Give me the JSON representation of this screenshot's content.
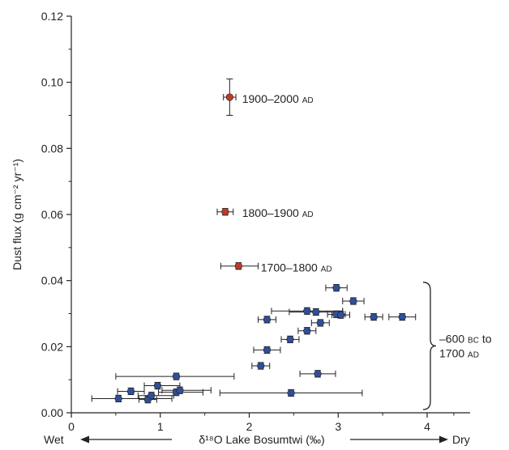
{
  "chart_data": {
    "type": "scatter",
    "xlim": [
      0,
      4.4
    ],
    "ylim": [
      0,
      0.12
    ],
    "x_ticks": [
      "0",
      "1",
      "2",
      "3",
      "4"
    ],
    "y_ticks": [
      "0.00",
      "0.02",
      "0.04",
      "0.06",
      "0.08",
      "0.10",
      "0.12"
    ],
    "x_tick_values": [
      0,
      1,
      2,
      3,
      4
    ],
    "y_tick_values": [
      0,
      0.02,
      0.04,
      0.06,
      0.08,
      0.1,
      0.12
    ],
    "ylabel": "Dust flux (g cm⁻² yr⁻¹)",
    "xlabel": {
      "left": "Wet",
      "center": "δ¹⁸O Lake Bosumtwi (‰)",
      "right": "Dry"
    },
    "colors": {
      "recent": "#c0392b",
      "older": "#2f4f9a",
      "errorbar": "#222222"
    },
    "series": [
      {
        "key": "recent",
        "points": [
          {
            "x": 1.78,
            "y": 0.0955,
            "xerr": [
              0.07,
              0.07
            ],
            "yerr": [
              0.0055,
              0.0055
            ]
          },
          {
            "x": 1.73,
            "y": 0.0608,
            "xerr": [
              0.09,
              0.09
            ],
            "yerr": [
              0.001,
              0.001
            ]
          },
          {
            "x": 1.88,
            "y": 0.0444,
            "xerr": [
              0.2,
              0.22
            ],
            "yerr": [
              0.001,
              0.001
            ]
          }
        ]
      },
      {
        "key": "older",
        "points": [
          {
            "x": 0.53,
            "y": 0.0043,
            "xerr": [
              0.3,
              0.6
            ],
            "yerr": [
              0.001,
              0.001
            ]
          },
          {
            "x": 0.67,
            "y": 0.0065,
            "xerr": [
              0.15,
              0.15
            ],
            "yerr": [
              0.001,
              0.001
            ]
          },
          {
            "x": 0.86,
            "y": 0.004,
            "xerr": [
              0.1,
              0.1
            ],
            "yerr": [
              0.001,
              0.001
            ]
          },
          {
            "x": 0.9,
            "y": 0.0052,
            "xerr": [
              0.15,
              0.25
            ],
            "yerr": [
              0.001,
              0.001
            ]
          },
          {
            "x": 0.97,
            "y": 0.0082,
            "xerr": [
              0.15,
              0.25
            ],
            "yerr": [
              0.001,
              0.001
            ]
          },
          {
            "x": 1.18,
            "y": 0.0062,
            "xerr": [
              0.2,
              0.3
            ],
            "yerr": [
              0.001,
              0.001
            ]
          },
          {
            "x": 1.22,
            "y": 0.0068,
            "xerr": [
              0.2,
              0.35
            ],
            "yerr": [
              0.001,
              0.001
            ]
          },
          {
            "x": 1.18,
            "y": 0.011,
            "xerr": [
              0.68,
              0.65
            ],
            "yerr": [
              0.001,
              0.001
            ]
          },
          {
            "x": 2.47,
            "y": 0.006,
            "xerr": [
              0.8,
              0.8
            ],
            "yerr": [
              0.001,
              0.001
            ]
          },
          {
            "x": 2.77,
            "y": 0.0118,
            "xerr": [
              0.2,
              0.2
            ],
            "yerr": [
              0.001,
              0.001
            ]
          },
          {
            "x": 2.13,
            "y": 0.0142,
            "xerr": [
              0.1,
              0.1
            ],
            "yerr": [
              0.001,
              0.001
            ]
          },
          {
            "x": 2.2,
            "y": 0.019,
            "xerr": [
              0.15,
              0.15
            ],
            "yerr": [
              0.001,
              0.001
            ]
          },
          {
            "x": 2.46,
            "y": 0.0222,
            "xerr": [
              0.1,
              0.1
            ],
            "yerr": [
              0.001,
              0.001
            ]
          },
          {
            "x": 2.65,
            "y": 0.0248,
            "xerr": [
              0.1,
              0.1
            ],
            "yerr": [
              0.001,
              0.001
            ]
          },
          {
            "x": 2.8,
            "y": 0.0272,
            "xerr": [
              0.1,
              0.1
            ],
            "yerr": [
              0.001,
              0.001
            ]
          },
          {
            "x": 2.2,
            "y": 0.0282,
            "xerr": [
              0.1,
              0.1
            ],
            "yerr": [
              0.001,
              0.001
            ]
          },
          {
            "x": 2.65,
            "y": 0.0308,
            "xerr": [
              0.4,
              0.4
            ],
            "yerr": [
              0.001,
              0.001
            ]
          },
          {
            "x": 2.75,
            "y": 0.0305,
            "xerr": [
              0.3,
              0.3
            ],
            "yerr": [
              0.001,
              0.001
            ]
          },
          {
            "x": 2.98,
            "y": 0.0298,
            "xerr": [
              0.1,
              0.1
            ],
            "yerr": [
              0.001,
              0.001
            ]
          },
          {
            "x": 3.03,
            "y": 0.0296,
            "xerr": [
              0.1,
              0.1
            ],
            "yerr": [
              0.001,
              0.001
            ]
          },
          {
            "x": 2.98,
            "y": 0.0378,
            "xerr": [
              0.12,
              0.12
            ],
            "yerr": [
              0.001,
              0.001
            ]
          },
          {
            "x": 3.17,
            "y": 0.0338,
            "xerr": [
              0.12,
              0.12
            ],
            "yerr": [
              0.001,
              0.001
            ]
          },
          {
            "x": 3.4,
            "y": 0.029,
            "xerr": [
              0.1,
              0.1
            ],
            "yerr": [
              0.001,
              0.001
            ]
          },
          {
            "x": 3.72,
            "y": 0.029,
            "xerr": [
              0.15,
              0.15
            ],
            "yerr": [
              0.001,
              0.001
            ]
          }
        ]
      }
    ],
    "annotations": [
      {
        "text": "1900–2000",
        "era": "AD",
        "x": 1.92,
        "y": 0.095
      },
      {
        "text": "1800–1900",
        "era": "AD",
        "x": 1.92,
        "y": 0.0605
      },
      {
        "text": "1700–1800",
        "era": "AD",
        "x": 2.13,
        "y": 0.044
      }
    ],
    "bracket": {
      "y_range": [
        0.0,
        0.0395
      ],
      "label_line1": "–600",
      "label_line1_era": "BC",
      "label_line1_suffix": "to",
      "label_line2": "1700",
      "label_line2_era": "AD"
    }
  }
}
